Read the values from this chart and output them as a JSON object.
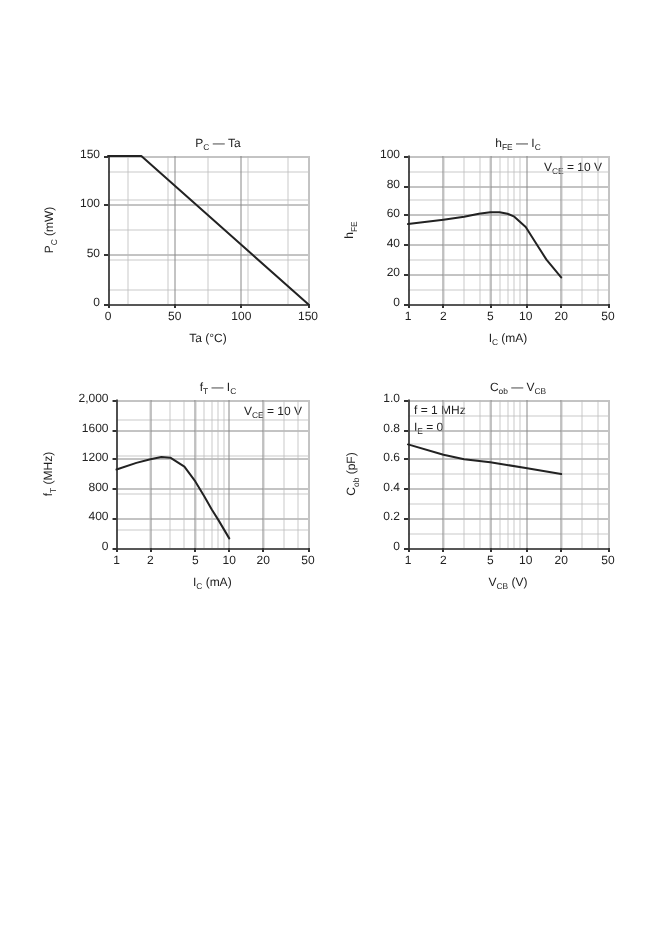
{
  "chart_data": [
    {
      "type": "line",
      "title": "P$_{C}$ — Ta",
      "xlabel": "Ta (°C)",
      "ylabel": "P$_{C}$ (mW)",
      "x": [
        0,
        25,
        150
      ],
      "values": [
        150,
        150,
        0
      ],
      "color": "#222222",
      "xlim": [
        0,
        150
      ],
      "xticks": [
        0,
        50,
        100,
        150
      ],
      "ylim": [
        0,
        150
      ],
      "yticks": [
        0,
        50,
        100,
        150
      ],
      "grid": true,
      "marker": "none",
      "line_style": "solid"
    },
    {
      "type": "line",
      "title": "h$_{FE}$ — I$_{C}$",
      "xlabel": "I$_{C}$ (mA)",
      "ylabel": "h$_{FE}$",
      "annotations": [
        "V$_{CE}$ = 10 V"
      ],
      "x": [
        1,
        2,
        3,
        4,
        5,
        6,
        7,
        8,
        10,
        12,
        15,
        20
      ],
      "values": [
        54,
        57,
        59,
        61,
        62,
        62,
        61,
        59,
        52,
        42,
        30,
        18
      ],
      "color": "#222222",
      "log": "x",
      "xlim": [
        1,
        50
      ],
      "xticks": [
        1,
        2,
        5,
        10,
        20,
        50
      ],
      "ylim": [
        0,
        100
      ],
      "yticks": [
        0,
        20,
        40,
        60,
        80,
        100
      ],
      "grid": true,
      "marker": "none",
      "line_style": "solid"
    },
    {
      "type": "line",
      "title": "f$_{T}$ — I$_{C}$",
      "xlabel": "I$_{C}$ (mA)",
      "ylabel": "f$_{T}$ (MHz)",
      "annotations": [
        "V$_{CE}$ = 10 V"
      ],
      "x": [
        1,
        1.5,
        2,
        2.5,
        3,
        4,
        5,
        6,
        7,
        8,
        10
      ],
      "values": [
        1060,
        1150,
        1200,
        1230,
        1220,
        1100,
        900,
        700,
        520,
        380,
        130
      ],
      "color": "#222222",
      "log": "x",
      "xlim": [
        1,
        50
      ],
      "xticks": [
        1,
        2,
        5,
        10,
        20,
        50
      ],
      "ylim": [
        0,
        2000
      ],
      "yticks": [
        0,
        400,
        800,
        1200,
        1600,
        {
          "value": 2000,
          "label": "2,000"
        }
      ],
      "grid": true,
      "marker": "none",
      "line_style": "solid"
    },
    {
      "type": "line",
      "title": "C$_{ob}$ — V$_{CB}$",
      "xlabel": "V$_{CB}$ (V)",
      "ylabel": "C$_{ob}$ (pF)",
      "annotations": [
        "f = 1 MHz",
        "I$_{E}$ = 0"
      ],
      "x": [
        1,
        2,
        3,
        5,
        10,
        20
      ],
      "values": [
        0.7,
        0.63,
        0.6,
        0.58,
        0.54,
        0.5
      ],
      "color": "#222222",
      "log": "x",
      "xlim": [
        1,
        50
      ],
      "xticks": [
        1,
        2,
        5,
        10,
        20,
        50
      ],
      "ylim": [
        0,
        1
      ],
      "yticks": [
        0,
        0.2,
        0.4,
        0.6,
        0.8,
        {
          "value": 1,
          "label": "1.0"
        }
      ],
      "grid": true,
      "marker": "none",
      "line_style": "solid"
    }
  ]
}
